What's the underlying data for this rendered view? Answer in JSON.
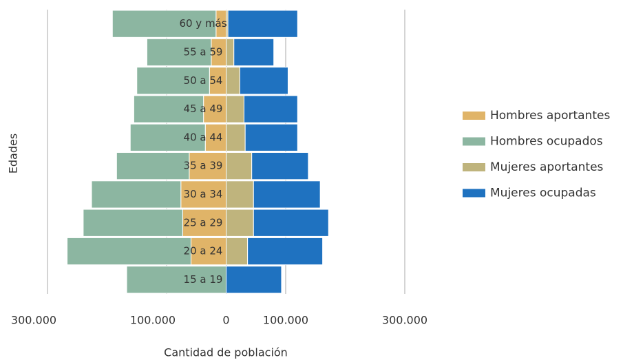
{
  "chart_data": {
    "type": "bar",
    "orientation": "horizontal",
    "stacked": true,
    "xlabel": "Cantidad de población",
    "ylabel": "Edades",
    "categories": [
      "60 y más",
      "55 a 59",
      "50 a 54",
      "45 a 49",
      "40 a 44",
      "35 a 39",
      "30 a 34",
      "25 a 29",
      "20 a 24",
      "15 a 19"
    ],
    "series": [
      {
        "name": "Hombres aportantes",
        "color": "#e0b468",
        "values": [
          -17000,
          -25000,
          -28000,
          -38000,
          -35000,
          -62000,
          -76000,
          -73000,
          -59000,
          0
        ]
      },
      {
        "name": "Hombres ocupados",
        "color": "#8cb6a1",
        "values": [
          -174000,
          -108000,
          -122000,
          -117000,
          -126000,
          -122000,
          -150000,
          -167000,
          -208000,
          -167000
        ]
      },
      {
        "name": "Mujeres aportantes",
        "color": "#bfb47d",
        "values": [
          3000,
          13000,
          23000,
          30000,
          32000,
          43000,
          46000,
          46000,
          36000,
          0
        ]
      },
      {
        "name": "Mujeres ocupadas",
        "color": "#1f72c0",
        "values": [
          117000,
          67000,
          81000,
          90000,
          88000,
          95000,
          112000,
          126000,
          126000,
          93000
        ]
      }
    ],
    "xlim": [
      -300000,
      300000
    ],
    "xticks": [
      {
        "value": -300000,
        "label": "300.000"
      },
      {
        "value": -100000,
        "label": "100.000"
      },
      0,
      {
        "value": 100000,
        "label": "100.000"
      },
      {
        "value": 300000,
        "label": "300.000"
      }
    ],
    "grid": true,
    "legend": "right"
  }
}
